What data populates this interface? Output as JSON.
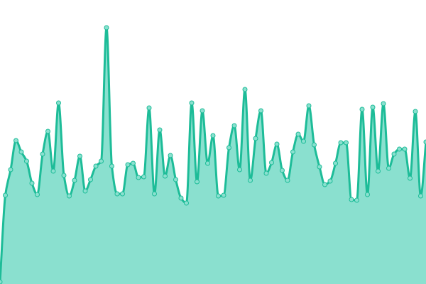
{
  "chart_data": {
    "type": "area",
    "title": "",
    "xlabel": "",
    "ylabel": "",
    "grid": false,
    "legend": "none",
    "xlim": [
      0,
      80
    ],
    "ylim": [
      0,
      400
    ],
    "colors": {
      "line": "#1dbc98",
      "fill": "#8ae0cf",
      "point_fill": "#8ae0cf",
      "point_stroke": "#1dbc98"
    },
    "x": [
      0,
      1,
      2,
      3,
      4,
      5,
      6,
      7,
      8,
      9,
      10,
      11,
      12,
      13,
      14,
      15,
      16,
      17,
      18,
      19,
      20,
      21,
      22,
      23,
      24,
      25,
      26,
      27,
      28,
      29,
      30,
      31,
      32,
      33,
      34,
      35,
      36,
      37,
      38,
      39,
      40,
      41,
      42,
      43,
      44,
      45,
      46,
      47,
      48,
      49,
      50,
      51,
      52,
      53,
      54,
      55,
      56,
      57,
      58,
      59,
      60,
      61,
      62,
      63,
      64,
      65,
      66,
      67,
      68,
      69,
      70,
      71,
      72,
      73,
      74,
      75,
      76,
      77,
      78,
      79,
      80
    ],
    "values": [
      3,
      125,
      161,
      202,
      186,
      173,
      142,
      126,
      183,
      215,
      159,
      255,
      153,
      124,
      146,
      180,
      131,
      147,
      166,
      173,
      361,
      166,
      127,
      127,
      168,
      170,
      150,
      151,
      248,
      127,
      217,
      152,
      181,
      147,
      121,
      114,
      255,
      144,
      244,
      170,
      209,
      124,
      125,
      192,
      223,
      161,
      274,
      146,
      205,
      244,
      156,
      171,
      197,
      160,
      146,
      186,
      211,
      201,
      251,
      196,
      165,
      140,
      145,
      170,
      199,
      199,
      119,
      118,
      246,
      126,
      249,
      159,
      254,
      163,
      183,
      190,
      190,
      149,
      243,
      124,
      200
    ]
  }
}
